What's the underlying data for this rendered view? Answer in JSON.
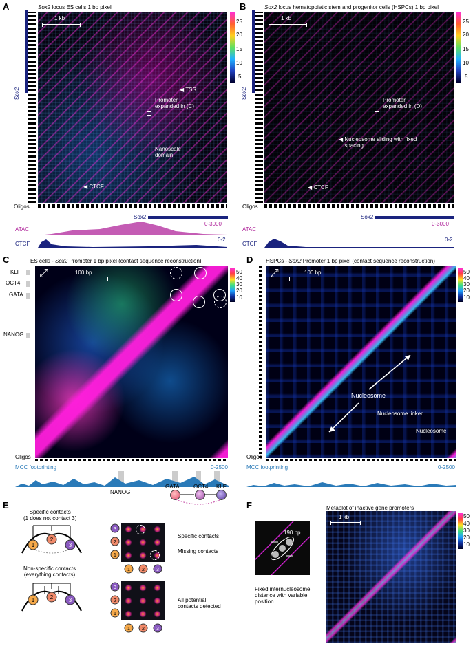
{
  "panels": {
    "A": {
      "letter": "A",
      "title_italic": "Sox2",
      "title_rest": " locus ES cells 1 bp pixel",
      "scale": "1 kb",
      "tss": "TSS",
      "promoter": "Promoter\nexpanded in (C)",
      "domain": "Nanoscale\ndomain",
      "ctcf": "CTCF",
      "colorbar": [
        "25",
        "20",
        "15",
        "10",
        "5"
      ],
      "gene": "Sox2",
      "oligos": "Oligos",
      "atac": "ATAC",
      "atac_range": "0-3000",
      "ctcf_track": "CTCF",
      "ctcf_range": "0-2"
    },
    "B": {
      "letter": "B",
      "title_italic": "Sox2",
      "title_rest": " locus hematopoietic stem and progenitor cells (HSPCs) 1 bp pixel",
      "scale": "1 kb",
      "promoter": "Promoter\nexpanded in (D)",
      "sliding": "Nucleosome sliding with fixed\nspacing",
      "ctcf": "CTCF",
      "colorbar": [
        "25",
        "20",
        "15",
        "10",
        "5"
      ],
      "gene": "Sox2",
      "oligos": "Oligos",
      "atac": "ATAC",
      "atac_range": "0-3000",
      "ctcf_track": "CTCF",
      "ctcf_range": "0-2"
    },
    "C": {
      "letter": "C",
      "title_pre": "ES cells - ",
      "title_italic": "Sox2",
      "title_rest": " Promoter 1 bp pixel (contact sequence reconstruction)",
      "scale": "100 bp",
      "tf_labels": [
        "KLF",
        "OCT4",
        "GATA",
        "NANOG"
      ],
      "colorbar": [
        "50",
        "40",
        "30",
        "20",
        "10"
      ],
      "oligos": "Oligos",
      "mcc": "MCC footprinting",
      "mcc_range": "0-2500",
      "bottom_labels": [
        "NANOG",
        "GATA",
        "OCT4",
        "KLF"
      ]
    },
    "D": {
      "letter": "D",
      "title_pre": "HSPCs - ",
      "title_italic": "Sox2",
      "title_rest": " Promoter 1 bp pixel (contact sequence reconstruction)",
      "scale": "100 bp",
      "nucleosome1": "Nucleosome",
      "linker": "Nucleosome linker",
      "nucleosome2": "Nucleosome",
      "colorbar": [
        "50",
        "40",
        "30",
        "20",
        "10"
      ],
      "oligos": "Oligos",
      "mcc": "MCC footprinting",
      "mcc_range": "0-2500"
    },
    "E": {
      "letter": "E",
      "specific_title": "Specific contacts\n(1 does not contact 3)",
      "nonspecific_title": "Non-specific contacts\n(everything contacts)",
      "specific_label": "Specific contacts",
      "missing_label": "Missing contacts",
      "all_label": "All potential\ncontacts detected",
      "nodes": [
        "1",
        "2",
        "3"
      ]
    },
    "F": {
      "letter": "F",
      "metaplot_title": "Metaplot of inactive gene promoters",
      "scale": "1 kb",
      "inset_label": "190 bp",
      "caption": "Fixed internucleosome\ndistance with variable\nposition",
      "colorbar": [
        "50",
        "40",
        "30",
        "20",
        "10"
      ]
    }
  },
  "colors": {
    "magenta": "#b0269b",
    "navy": "#1a237e",
    "mcc_blue": "#2a7ab8"
  }
}
